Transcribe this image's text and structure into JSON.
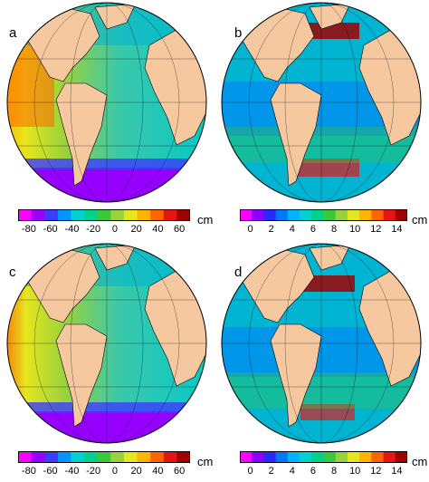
{
  "panels": [
    {
      "label": "a",
      "field": "mean-height",
      "scale": "scale1"
    },
    {
      "label": "b",
      "field": "variability",
      "scale": "scale2"
    },
    {
      "label": "c",
      "field": "mean-height",
      "scale": "scale1"
    },
    {
      "label": "d",
      "field": "variability",
      "scale": "scale2"
    }
  ],
  "scale1": {
    "ticks": [
      "-80",
      "-60",
      "-40",
      "-20",
      "0",
      "20",
      "40",
      "60"
    ],
    "unit": "cm",
    "colors": [
      "#ff00ff",
      "#9a00ff",
      "#3c3cff",
      "#0096ff",
      "#00d2d2",
      "#00d28c",
      "#3cc83c",
      "#9bd23c",
      "#e6e61e",
      "#ffb400",
      "#ff6400",
      "#e61414",
      "#a00000"
    ]
  },
  "scale2": {
    "ticks": [
      "0",
      "2",
      "4",
      "6",
      "8",
      "10",
      "12",
      "14"
    ],
    "unit": "cm",
    "colors": [
      "#ff00ff",
      "#8c00ff",
      "#2828ff",
      "#0078ff",
      "#00b4ff",
      "#00d2d2",
      "#00d28c",
      "#3cc83c",
      "#96d23c",
      "#e6e61e",
      "#ffb400",
      "#ff6400",
      "#e61414",
      "#a00000"
    ]
  },
  "colors": {
    "land": "#f5c8a0",
    "ocean_mid": "#3cc8aa",
    "ice": "#9600ff"
  }
}
